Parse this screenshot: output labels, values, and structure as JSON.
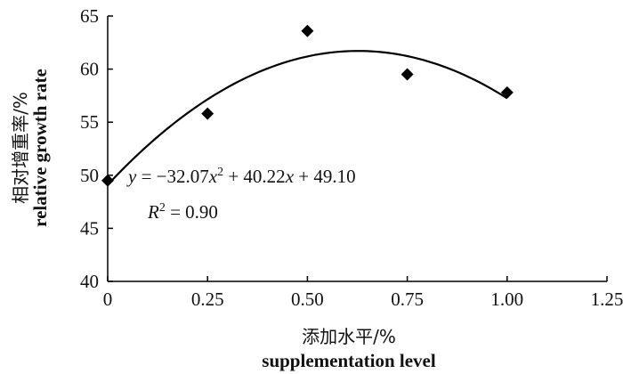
{
  "chart_data": {
    "type": "scatter",
    "title": "",
    "xlabel_cn": "添加水平/%",
    "xlabel_en": "supplementation level",
    "ylabel_cn": "相对增重率/%",
    "ylabel_en": "relative growth rate",
    "xlim": [
      0,
      1.25
    ],
    "ylim": [
      40,
      65
    ],
    "x_ticks": [
      "0",
      "0.25",
      "0.50",
      "0.75",
      "1.00",
      "1.25"
    ],
    "y_ticks": [
      "40",
      "45",
      "50",
      "55",
      "60",
      "65"
    ],
    "grid": false,
    "series": [
      {
        "marker": "diamond",
        "x": [
          0,
          0.25,
          0.5,
          0.75,
          1.0
        ],
        "y": [
          49.5,
          55.8,
          63.6,
          59.5,
          57.8
        ]
      }
    ],
    "trendline": {
      "type": "polynomial",
      "coefficients": [
        -32.07,
        40.22,
        49.1
      ],
      "x_range": [
        0,
        1.0
      ]
    },
    "annotations": {
      "equation": "y = −32.07x² + 40.22x + 49.10",
      "r_squared": "R² = 0.90"
    }
  }
}
